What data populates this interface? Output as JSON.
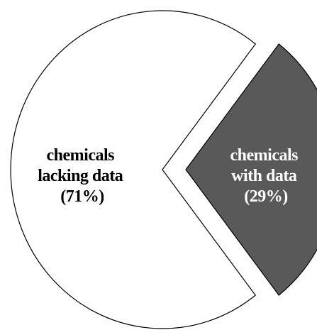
{
  "chart_data": {
    "type": "pie",
    "exploded": true,
    "slices": [
      {
        "name": "chemicals lacking data",
        "value": 71,
        "label_lines": [
          "chemicals",
          "lacking data",
          "(71%)"
        ],
        "fill": "#ffffff",
        "label_color": "#000000"
      },
      {
        "name": "chemicals with data",
        "value": 29,
        "label_lines": [
          "chemicals",
          "with data",
          "(29%)"
        ],
        "fill": "#595959",
        "label_color": "#ffffff"
      }
    ],
    "outline_color": "#000000",
    "background": "#ffffff"
  }
}
